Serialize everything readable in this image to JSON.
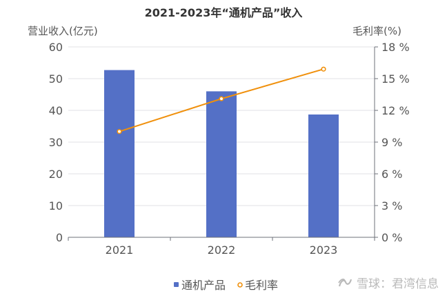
{
  "chart_data": {
    "type": "bar",
    "title": "2021-2023年“通机产品”收入",
    "categories": [
      "2021",
      "2022",
      "2023"
    ],
    "series": [
      {
        "name": "通机产品",
        "kind": "bar",
        "axis": "left",
        "values": [
          52.7,
          46.0,
          38.7
        ]
      },
      {
        "name": "毛利率",
        "kind": "line",
        "axis": "right",
        "values": [
          10.0,
          13.1,
          15.9
        ]
      }
    ],
    "ylabel": "营业收入(亿元)",
    "y2label": "毛利率(%)",
    "ylim": [
      0,
      60
    ],
    "y2lim": [
      0,
      18
    ],
    "yticks": [
      "0",
      "10",
      "20",
      "30",
      "40",
      "50",
      "60"
    ],
    "y2ticks": [
      "0 %",
      "3 %",
      "6 %",
      "9 %",
      "12 %",
      "15 %",
      "18 %"
    ],
    "grid": true,
    "legend": "bottom-center",
    "colors": {
      "bar": "#5470c6",
      "line": "#f0900c",
      "grid": "#e0e0e6",
      "axis": "#6e7079",
      "text": "#555555"
    }
  },
  "watermark": {
    "text": "雪球：君湾信息"
  }
}
